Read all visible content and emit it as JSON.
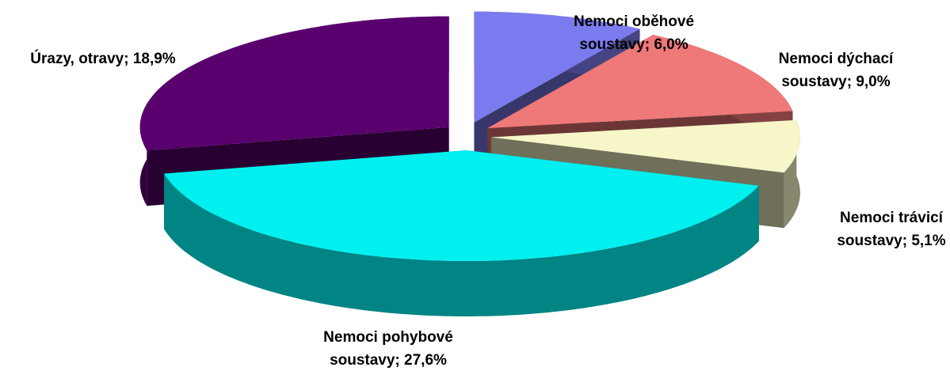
{
  "chart_data": {
    "type": "pie3d",
    "categories": [
      "Nemoci oběhové soustavy",
      "Nemoci dýchací soustavy",
      "Nemoci trávicí soustavy",
      "Nemoci pohybové soustavy",
      "Úrazy, otravy"
    ],
    "values": [
      6.0,
      9.0,
      5.1,
      27.6,
      18.9
    ],
    "value_labels": [
      "6,0%",
      "9,0%",
      "5,1%",
      "27,6%",
      "18,9%"
    ],
    "labels": [
      [
        "Nemoci oběhové",
        "soustavy; 6,0%"
      ],
      [
        "Nemoci dýchací",
        "soustavy; 9,0%"
      ],
      [
        "Nemoci trávicí",
        "soustavy; 5,1%"
      ],
      [
        "Nemoci pohybové",
        "soustavy; 27,6%"
      ],
      [
        "Úrazy, otravy; 18,9%"
      ]
    ],
    "colors": [
      "#7b7bef",
      "#ef7878",
      "#f6f6c8",
      "#00f0f0",
      "#5a006e"
    ]
  }
}
